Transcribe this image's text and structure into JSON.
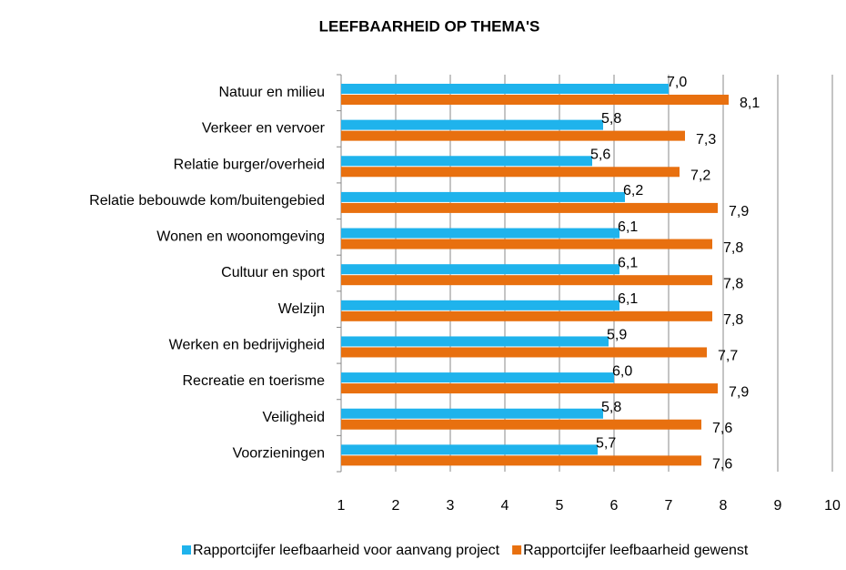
{
  "chart_data": {
    "type": "hbar",
    "title": "LEEFBAARHEID OP THEMA'S",
    "categories": [
      "Natuur en milieu",
      "Verkeer en vervoer",
      "Relatie burger/overheid",
      "Relatie bebouwde kom/buitengebied",
      "Wonen en woonomgeving",
      "Cultuur en sport",
      "Welzijn",
      "Werken en bedrijvigheid",
      "Recreatie en toerisme",
      "Veiligheid",
      "Voorzieningen"
    ],
    "series": [
      {
        "name": "Rapportcijfer leefbaarheid voor aanvang project",
        "color": "#1fb3ec",
        "values": [
          7.0,
          5.8,
          5.6,
          6.2,
          6.1,
          6.1,
          6.1,
          5.9,
          6.0,
          5.8,
          5.7
        ],
        "value_labels": [
          "7,0",
          "5,8",
          "5,6",
          "6,2",
          "6,1",
          "6,1",
          "6,1",
          "5,9",
          "6,0",
          "5,8",
          "5,7"
        ]
      },
      {
        "name": "Rapportcijfer leefbaarheid gewenst",
        "color": "#e8700f",
        "values": [
          8.1,
          7.3,
          7.2,
          7.9,
          7.8,
          7.8,
          7.8,
          7.7,
          7.9,
          7.6,
          7.6
        ],
        "value_labels": [
          "8,1",
          "7,3",
          "7,2",
          "7,9",
          "7,8",
          "7,8",
          "7,8",
          "7,7",
          "7,9",
          "7,6",
          "7,6"
        ]
      }
    ],
    "xlim": [
      1,
      10
    ],
    "xticks": [
      1,
      2,
      3,
      4,
      5,
      6,
      7,
      8,
      9,
      10
    ],
    "grid": true,
    "legend": "bottom"
  }
}
